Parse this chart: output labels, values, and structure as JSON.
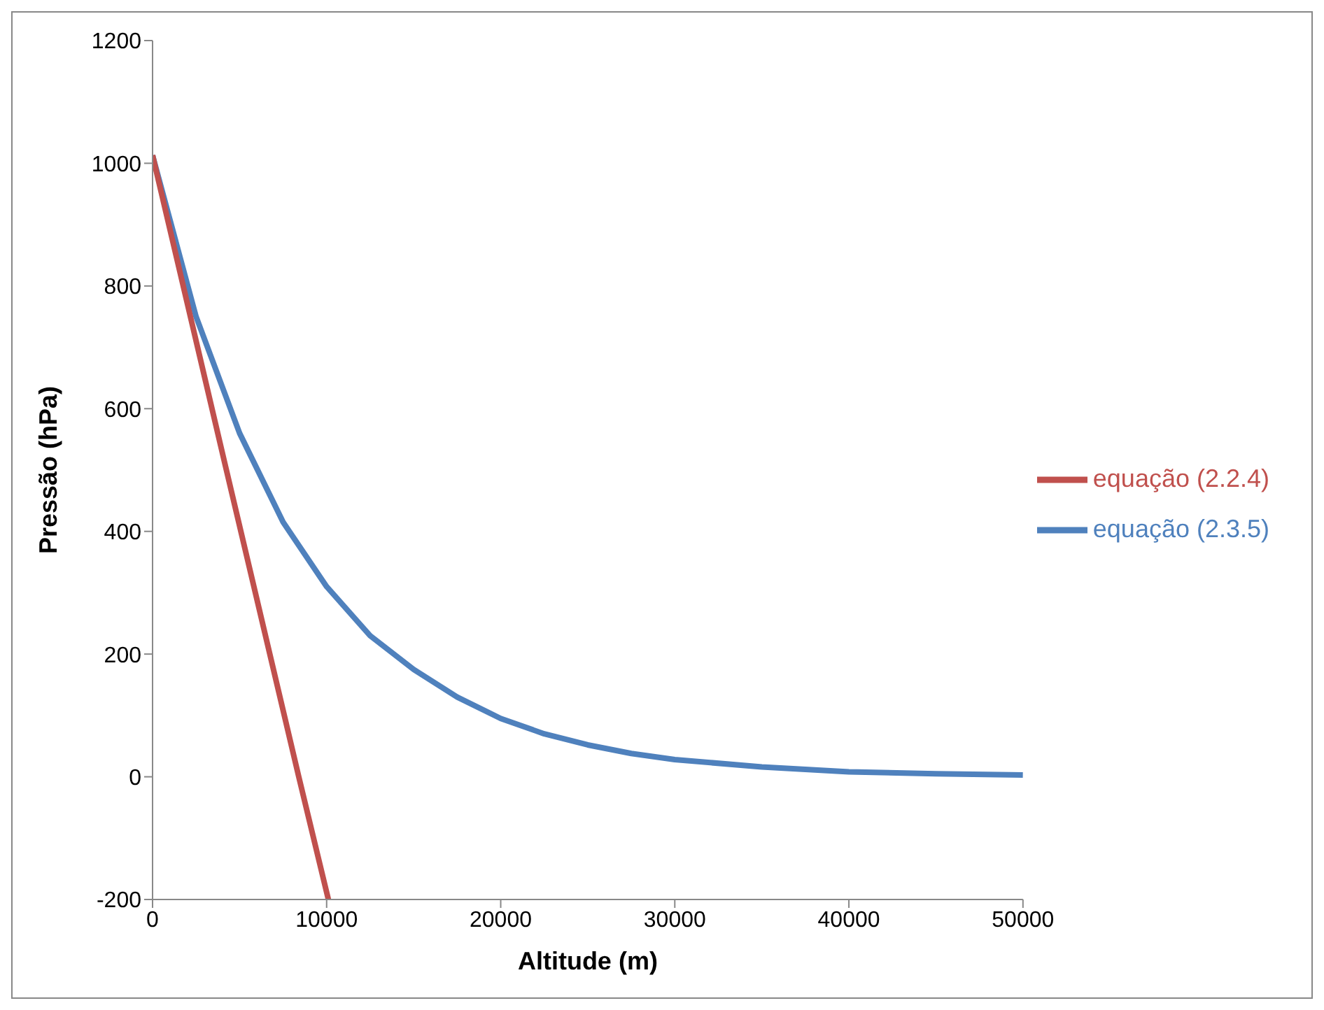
{
  "chart_data": {
    "type": "line",
    "xlabel": "Altitude (m)",
    "ylabel": "Pressão (hPa)",
    "xlim": [
      0,
      50000
    ],
    "xticks": [
      0,
      10000,
      20000,
      30000,
      40000,
      50000
    ],
    "ylim": [
      -200,
      1200
    ],
    "yticks": [
      -200,
      0,
      200,
      400,
      600,
      800,
      1000,
      1200
    ],
    "grid": false,
    "legend": "right",
    "marker": "none",
    "line_style": "solid",
    "series": [
      {
        "name": "equação (2.3.5)",
        "color": "#4f81bd",
        "x": [
          0,
          2500,
          5000,
          7500,
          10000,
          12500,
          15000,
          17500,
          20000,
          22500,
          25000,
          27500,
          30000,
          35000,
          40000,
          45000,
          50000
        ],
        "values": [
          1013,
          750,
          560,
          415,
          310,
          230,
          175,
          130,
          95,
          70,
          52,
          38,
          28,
          16,
          8,
          5,
          3
        ]
      },
      {
        "name": "equação (2.2.4)",
        "color": "#c0504d",
        "x": [
          0,
          4200,
          8400,
          10100
        ],
        "values": [
          1013,
          505,
          0,
          -200
        ]
      }
    ]
  }
}
